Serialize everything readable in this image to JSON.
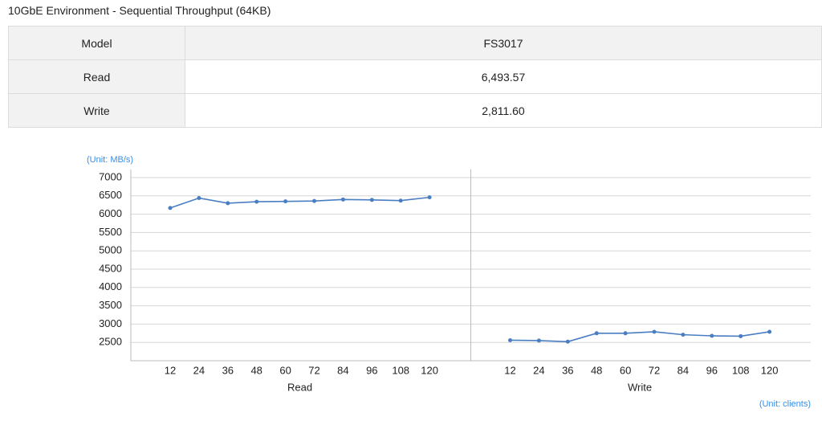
{
  "title": "10GbE Environment - Sequential Throughput (64KB)",
  "table": {
    "header": [
      "Model",
      "FS3017"
    ],
    "rows": [
      [
        "Read",
        "6,493.57"
      ],
      [
        "Write",
        "2,811.60"
      ]
    ]
  },
  "chart_data": {
    "type": "line",
    "y_unit": "(Unit: MB/s)",
    "x_unit": "(Unit: clients)",
    "categories": [
      12,
      24,
      36,
      48,
      60,
      72,
      84,
      96,
      108,
      120
    ],
    "series": [
      {
        "name": "Read",
        "color": "#4a7ec2",
        "values": [
          6170,
          6440,
          6300,
          6340,
          6350,
          6360,
          6400,
          6390,
          6370,
          6460
        ]
      },
      {
        "name": "Write",
        "color": "#4a7ec2",
        "values": [
          2560,
          2550,
          2520,
          2750,
          2750,
          2790,
          2710,
          2680,
          2670,
          2790
        ]
      }
    ],
    "ylim": [
      2000,
      7000
    ],
    "yticks": [
      2500,
      3000,
      3500,
      4000,
      4500,
      5000,
      5500,
      6000,
      6500,
      7000
    ],
    "grid": true
  }
}
